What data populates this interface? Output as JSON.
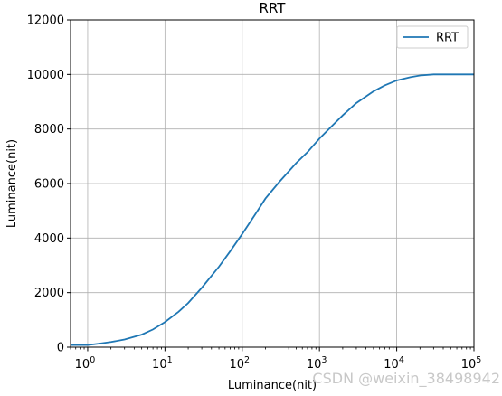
{
  "chart_data": {
    "type": "line",
    "title": "RRT",
    "xlabel": "Luminance(nit)",
    "ylabel": "Luminance(nit)",
    "xscale": "log",
    "xlim": [
      0.6,
      100000
    ],
    "ylim": [
      0,
      12000
    ],
    "grid": true,
    "legend": "top-right",
    "x_ticks": [
      {
        "value": 1,
        "base": "10",
        "exp": "0"
      },
      {
        "value": 10,
        "base": "10",
        "exp": "1"
      },
      {
        "value": 100,
        "base": "10",
        "exp": "2"
      },
      {
        "value": 1000,
        "base": "10",
        "exp": "3"
      },
      {
        "value": 10000,
        "base": "10",
        "exp": "4"
      },
      {
        "value": 100000,
        "base": "10",
        "exp": "5"
      }
    ],
    "y_ticks": [
      0,
      2000,
      4000,
      6000,
      8000,
      10000,
      12000
    ],
    "y_tick_labels": [
      "0",
      "2000",
      "4000",
      "6000",
      "8000",
      "10000",
      "12000"
    ],
    "series": [
      {
        "name": "RRT",
        "color": "#1f77b4",
        "x": [
          0.6,
          1,
          1.5,
          2,
          3,
          5,
          7,
          10,
          15,
          20,
          30,
          50,
          70,
          100,
          150,
          200,
          300,
          500,
          700,
          1000,
          1500,
          2000,
          3000,
          5000,
          7000,
          10000,
          15000,
          20000,
          30000,
          50000,
          100000
        ],
        "y": [
          80,
          80,
          140,
          190,
          280,
          460,
          650,
          920,
          1300,
          1620,
          2180,
          2950,
          3520,
          4150,
          4900,
          5450,
          6050,
          6750,
          7150,
          7650,
          8150,
          8500,
          8950,
          9380,
          9600,
          9780,
          9900,
          9960,
          10000,
          10000,
          10000
        ]
      }
    ]
  },
  "watermark": "CSDN @weixin_38498942",
  "colors": {
    "line": "#1f77b4",
    "grid": "#b0b0b0",
    "axes": "#000000",
    "legend_border": "#cccccc"
  }
}
